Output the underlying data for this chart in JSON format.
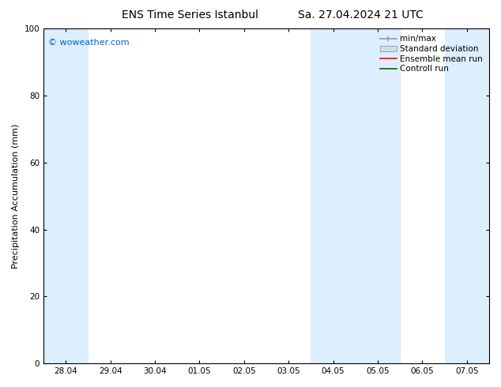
{
  "title_left": "ENS Time Series Istanbul",
  "title_right": "Sa. 27.04.2024 21 UTC",
  "ylabel": "Precipitation Accumulation (mm)",
  "ylim": [
    0,
    100
  ],
  "yticks": [
    0,
    20,
    40,
    60,
    80,
    100
  ],
  "x_labels": [
    "28.04",
    "29.04",
    "30.04",
    "01.05",
    "02.05",
    "03.05",
    "04.05",
    "05.05",
    "06.05",
    "07.05"
  ],
  "x_values": [
    0,
    1,
    2,
    3,
    4,
    5,
    6,
    7,
    8,
    9
  ],
  "x_min": -0.5,
  "x_max": 9.5,
  "watermark": "© woweather.com",
  "watermark_color": "#0066cc",
  "background_color": "#ffffff",
  "plot_bg_color": "#ffffff",
  "shaded_regions": [
    {
      "x_start": -0.5,
      "x_end": 0.5,
      "color": "#ddeeff"
    },
    {
      "x_start": 5.5,
      "x_end": 7.5,
      "color": "#ddeeff"
    },
    {
      "x_start": 8.5,
      "x_end": 9.5,
      "color": "#ddeeff"
    }
  ],
  "legend_entries": [
    {
      "label": "min/max",
      "type": "errorbar",
      "color": "#999999"
    },
    {
      "label": "Standard deviation",
      "type": "bar",
      "color": "#ccddee"
    },
    {
      "label": "Ensemble mean run",
      "type": "line",
      "color": "#ff0000"
    },
    {
      "label": "Controll run",
      "type": "line",
      "color": "#006600"
    }
  ],
  "title_fontsize": 10,
  "axis_fontsize": 8,
  "tick_fontsize": 7.5,
  "legend_fontsize": 7.5
}
